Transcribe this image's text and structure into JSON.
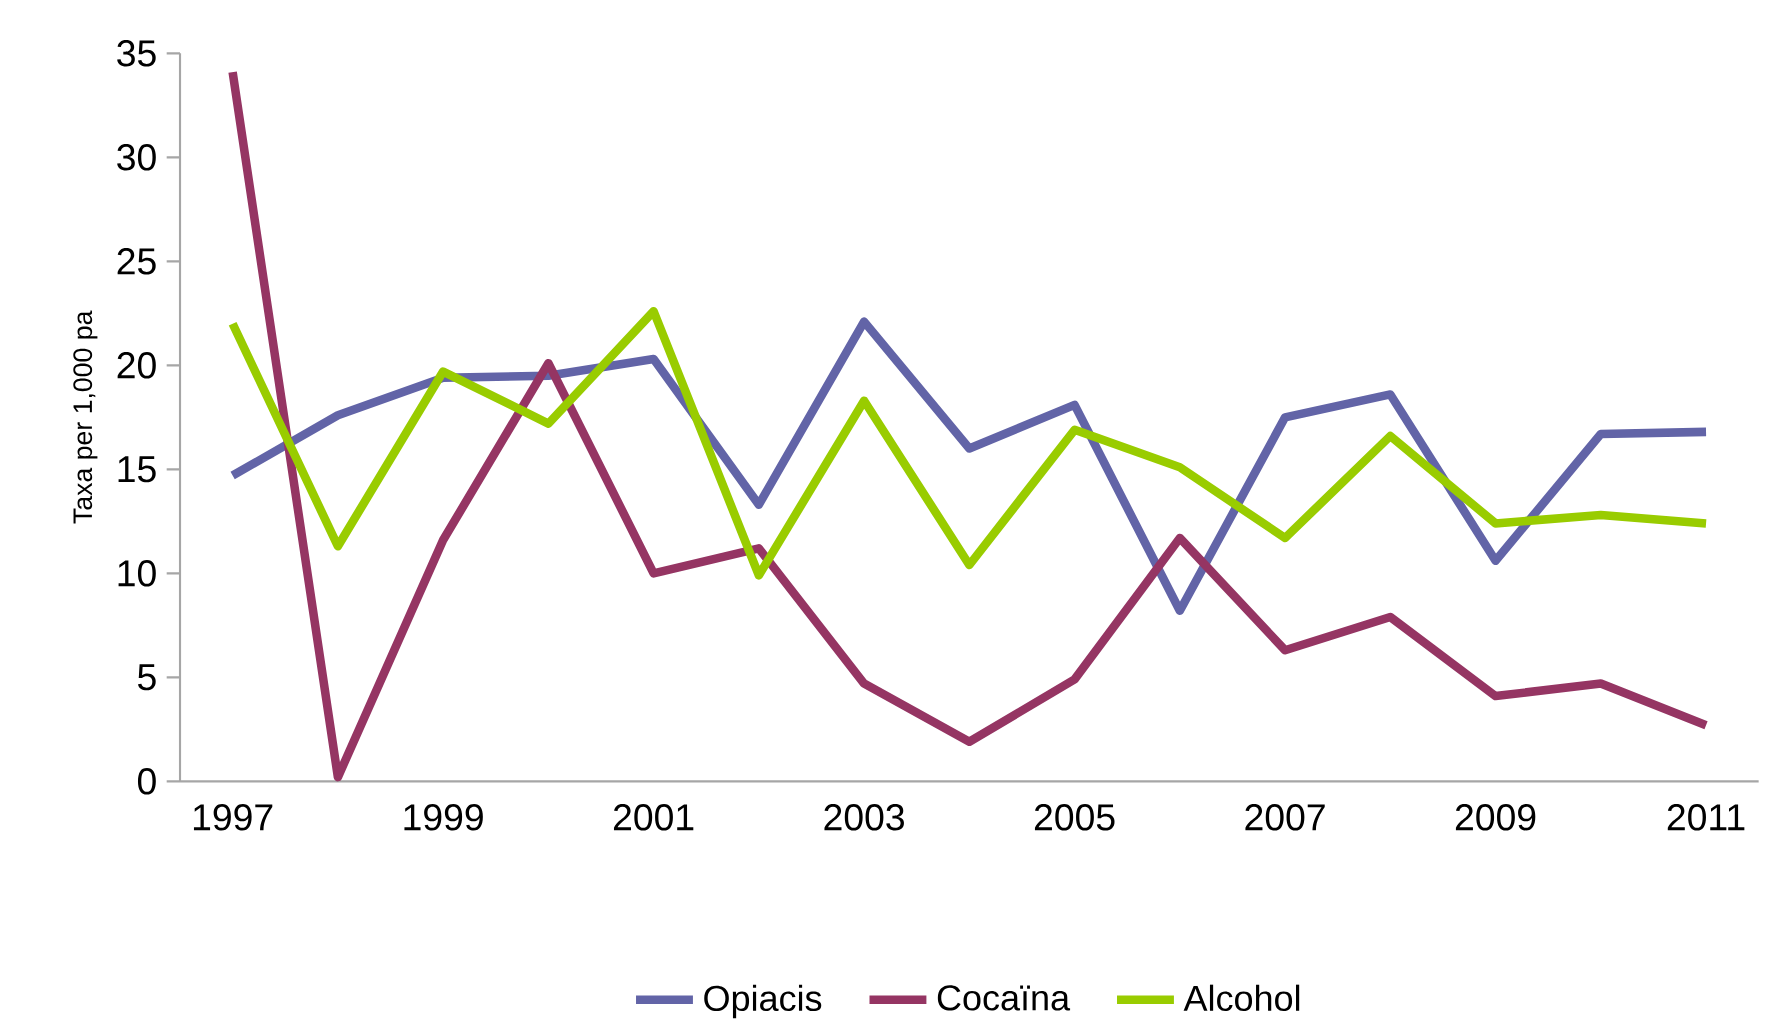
{
  "chart_data": {
    "type": "line",
    "ylabel": "Taxa per 1,000 pa",
    "categories": [
      "1997",
      null,
      "1999",
      null,
      "2001",
      null,
      "2003",
      null,
      "2005",
      null,
      "2007",
      null,
      "2009",
      null,
      "2011"
    ],
    "series": [
      {
        "name": "Opiacis",
        "color": "#6264a7",
        "values": [
          14.7,
          17.6,
          19.4,
          19.5,
          20.3,
          13.3,
          22.1,
          16.0,
          18.1,
          8.2,
          17.5,
          18.6,
          10.6,
          16.7,
          16.8
        ]
      },
      {
        "name": "Cocaïna",
        "color": "#953563",
        "values": [
          34.1,
          0.2,
          11.6,
          20.1,
          10.0,
          11.2,
          4.7,
          1.9,
          4.9,
          11.7,
          6.3,
          7.9,
          4.1,
          4.7,
          2.7
        ]
      },
      {
        "name": "Alcohol",
        "color": "#99cc00",
        "values": [
          22.0,
          11.3,
          19.7,
          17.2,
          22.6,
          9.9,
          18.3,
          10.4,
          16.9,
          15.1,
          11.7,
          16.6,
          12.4,
          12.8,
          12.4
        ]
      }
    ],
    "ylim": [
      0,
      35
    ],
    "yticks": [
      0,
      5,
      10,
      15,
      20,
      25,
      30,
      35
    ],
    "legend": "bottom"
  }
}
